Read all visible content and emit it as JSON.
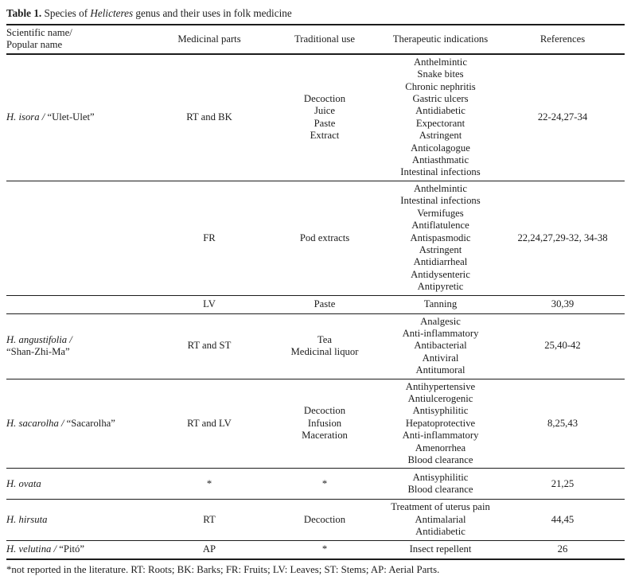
{
  "caption": {
    "label": "Table 1.",
    "pre": " Species of ",
    "genus": "Helicteres",
    "post": " genus and their uses in folk medicine"
  },
  "headers": [
    "Scientific name/\nPopular name",
    "Medicinal parts",
    "Traditional use",
    "Therapeutic indications",
    "References"
  ],
  "rows": [
    {
      "scientific": "H. isora / ",
      "popular": "“Ulet-Ulet”",
      "parts": "RT and BK",
      "use": "Decoction\nJuice\nPaste\nExtract",
      "indications": "Anthelmintic\nSnake bites\nChronic nephritis\nGastric ulcers\nAntidiabetic\nExpectorant\nAstringent\nAnticolagogue\nAntiasthmatic\nIntestinal infections",
      "references": "22-24,27-34"
    },
    {
      "scientific": "",
      "popular": "",
      "parts": "FR",
      "use": "Pod extracts",
      "indications": "Anthelmintic\nIntestinal infections\nVermifuges\nAntiflatulence\nAntispasmodic\nAstringent\nAntidiarrheal\nAntidysenteric\nAntipyretic",
      "references": "22,24,27,29-32, 34-38"
    },
    {
      "scientific": "",
      "popular": "",
      "parts": "LV",
      "use": "Paste",
      "indications": "Tanning",
      "references": "30,39"
    },
    {
      "scientific": "H. angustifolia /",
      "popular": "\n“Shan-Zhi-Ma”",
      "parts": "RT and ST",
      "use": "Tea\nMedicinal liquor",
      "indications": "Analgesic\nAnti-inflammatory\nAntibacterial\nAntiviral\nAntitumoral",
      "references": "25,40-42"
    },
    {
      "scientific": "H. sacarolha / ",
      "popular": "“Sacarolha”",
      "parts": "RT and LV",
      "use": "Decoction\nInfusion\nMaceration",
      "indications": "Antihypertensive\nAntiulcerogenic\nAntisyphilitic\nHepatoprotective\nAnti-inflammatory\nAmenorrhea\nBlood clearance",
      "references": "8,25,43"
    },
    {
      "scientific": "H. ovata",
      "popular": "",
      "parts": "*",
      "use": "*",
      "indications": "Antisyphilitic\nBlood clearance",
      "references": "21,25"
    },
    {
      "scientific": "H. hirsuta",
      "popular": "",
      "parts": "RT",
      "use": "Decoction",
      "indications": "Treatment of uterus pain\nAntimalarial\nAntidiabetic",
      "references": "44,45"
    },
    {
      "scientific": "H. velutina / ",
      "popular": "“Pitó”",
      "parts": "AP",
      "use": "*",
      "indications": "Insect repellent",
      "references": "26"
    }
  ],
  "footnote": "*not reported in the literature. RT: Roots; BK: Barks; FR: Fruits; LV: Leaves; ST: Stems; AP: Aerial Parts."
}
